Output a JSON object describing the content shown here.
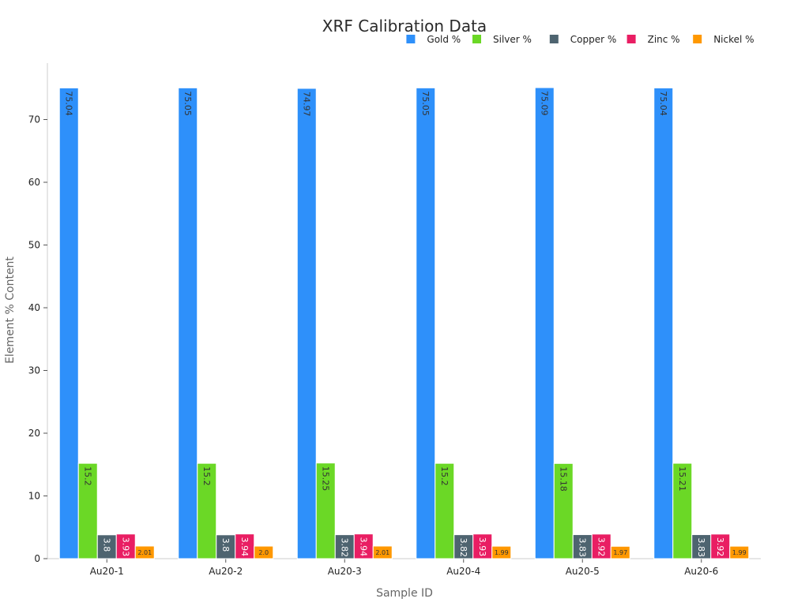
{
  "chart_data": {
    "type": "bar",
    "title": "XRF Calibration Data",
    "xlabel": "Sample ID",
    "ylabel": "Element % Content",
    "categories": [
      "Au20-1",
      "Au20-2",
      "Au20-3",
      "Au20-4",
      "Au20-5",
      "Au20-6"
    ],
    "series": [
      {
        "name": "Gold %",
        "color": "#2e90fa",
        "label_color": "#333333",
        "values": [
          75.04,
          75.05,
          74.97,
          75.05,
          75.09,
          75.04
        ],
        "value_labels": [
          "75.04",
          "75.05",
          "74.97",
          "75.05",
          "75.09",
          "75.04"
        ]
      },
      {
        "name": "Silver %",
        "color": "#6bd826",
        "label_color": "#333333",
        "values": [
          15.2,
          15.2,
          15.25,
          15.2,
          15.18,
          15.21
        ],
        "value_labels": [
          "15.2",
          "15.2",
          "15.25",
          "15.2",
          "15.18",
          "15.21"
        ]
      },
      {
        "name": "Copper %",
        "color": "#4e6470",
        "label_color": "#ffffff",
        "values": [
          3.8,
          3.8,
          3.82,
          3.82,
          3.83,
          3.83
        ],
        "value_labels": [
          "3.8",
          "3.8",
          "3.82",
          "3.82",
          "3.83",
          "3.83"
        ]
      },
      {
        "name": "Zinc %",
        "color": "#e91e63",
        "label_color": "#ffffff",
        "values": [
          3.93,
          3.94,
          3.94,
          3.93,
          3.92,
          3.92
        ],
        "value_labels": [
          "3.93",
          "3.94",
          "3.94",
          "3.93",
          "3.92",
          "3.92"
        ]
      },
      {
        "name": "Nickel %",
        "color": "#ff9800",
        "label_color": "#333333",
        "values": [
          2.01,
          2.0,
          2.01,
          1.99,
          1.97,
          1.99
        ],
        "value_labels": [
          "2.01",
          "2.0",
          "2.01",
          "1.99",
          "1.97",
          "1.99"
        ]
      }
    ],
    "y_ticks": [
      0,
      10,
      20,
      30,
      40,
      50,
      60,
      70
    ],
    "ylim": [
      0,
      80
    ],
    "grid": false,
    "legend_position": "top-right"
  }
}
